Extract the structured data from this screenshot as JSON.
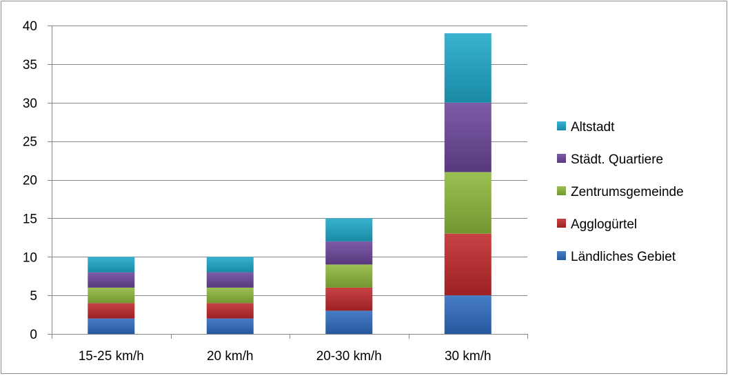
{
  "chart_data": {
    "type": "bar",
    "stacked": true,
    "title": "",
    "xlabel": "",
    "ylabel": "",
    "categories": [
      "15-25 km/h",
      "20 km/h",
      "20-30 km/h",
      "30 km/h"
    ],
    "ylim": [
      0,
      40
    ],
    "yticks": [
      0,
      5,
      10,
      15,
      20,
      25,
      30,
      35,
      40
    ],
    "grid": true,
    "legend_position": "right",
    "series": [
      {
        "name": "Ländliches Gebiet",
        "color": "#2e6bbf",
        "values": [
          2,
          2,
          3,
          5
        ]
      },
      {
        "name": "Agglogürtel",
        "color": "#c0282b",
        "values": [
          2,
          2,
          3,
          8
        ]
      },
      {
        "name": "Zentrumsgemeinde",
        "color": "#8db73a",
        "values": [
          2,
          2,
          3,
          8
        ]
      },
      {
        "name": "Städt. Quartiere",
        "color": "#6b469a",
        "values": [
          2,
          2,
          3,
          9
        ]
      },
      {
        "name": "Altstadt",
        "color": "#1ea8c8",
        "values": [
          2,
          2,
          3,
          9
        ]
      }
    ]
  }
}
